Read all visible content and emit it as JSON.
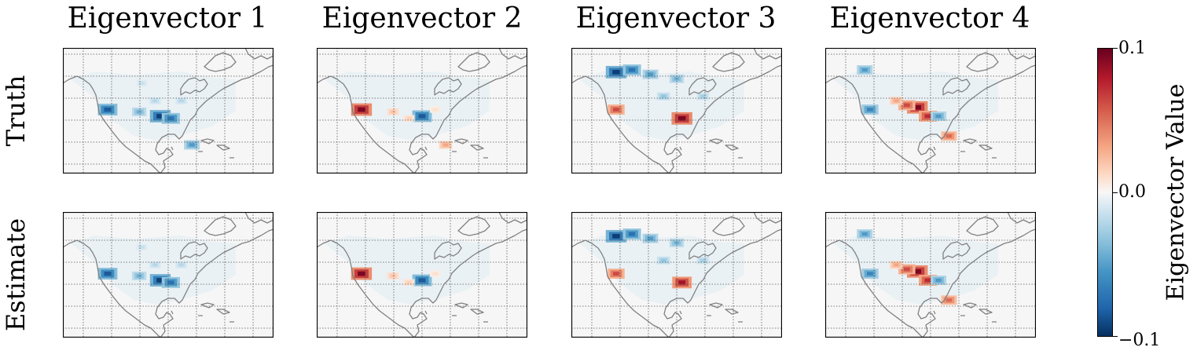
{
  "chart_data": {
    "type": "heatmap",
    "columns": [
      "Eigenvector 1",
      "Eigenvector 2",
      "Eigenvector 3",
      "Eigenvector 4"
    ],
    "rows": [
      "Truth",
      "Estimate"
    ],
    "colorbar": {
      "label": "Eigenvector Value",
      "ticks": [
        "0.1",
        "0.0",
        "−0.1"
      ],
      "range": [
        -0.1,
        0.1
      ],
      "colormap": "RdBu_r"
    },
    "grid": true,
    "map": "North America coastlines, lon/lat grid",
    "panels": [
      {
        "row": "Truth",
        "column": "Eigenvector 1",
        "features": [
          {
            "lon": -118,
            "lat": 34,
            "value": -0.08
          },
          {
            "lon": -98,
            "lat": 31,
            "value": -0.09
          },
          {
            "lon": -94,
            "lat": 30,
            "value": -0.07
          },
          {
            "lon": -106,
            "lat": 33,
            "value": -0.04
          },
          {
            "lon": -100,
            "lat": 38,
            "value": -0.02
          },
          {
            "lon": -105,
            "lat": 46,
            "value": -0.015
          },
          {
            "lon": -90,
            "lat": 38,
            "value": -0.02
          },
          {
            "lon": -86,
            "lat": 18,
            "value": -0.05
          }
        ]
      },
      {
        "row": "Truth",
        "column": "Eigenvector 2",
        "features": [
          {
            "lon": -118,
            "lat": 34,
            "value": 0.09
          },
          {
            "lon": -95,
            "lat": 31,
            "value": -0.08
          },
          {
            "lon": -106,
            "lat": 33,
            "value": 0.02
          },
          {
            "lon": -100,
            "lat": 30,
            "value": 0.015
          },
          {
            "lon": -90,
            "lat": 34,
            "value": 0.01
          },
          {
            "lon": -86,
            "lat": 18,
            "value": 0.03
          }
        ]
      },
      {
        "row": "Truth",
        "column": "Eigenvector 3",
        "features": [
          {
            "lon": -118,
            "lat": 51,
            "value": -0.09
          },
          {
            "lon": -112,
            "lat": 52,
            "value": -0.07
          },
          {
            "lon": -105,
            "lat": 50,
            "value": -0.05
          },
          {
            "lon": -95,
            "lat": 48,
            "value": -0.04
          },
          {
            "lon": -100,
            "lat": 40,
            "value": -0.03
          },
          {
            "lon": -85,
            "lat": 40,
            "value": -0.025
          },
          {
            "lon": -118,
            "lat": 34,
            "value": 0.06
          },
          {
            "lon": -93,
            "lat": 30,
            "value": 0.09
          }
        ]
      },
      {
        "row": "Truth",
        "column": "Eigenvector 4",
        "features": [
          {
            "lon": -100,
            "lat": 35,
            "value": 0.09
          },
          {
            "lon": -104,
            "lat": 36,
            "value": 0.06
          },
          {
            "lon": -96,
            "lat": 31,
            "value": 0.07
          },
          {
            "lon": -108,
            "lat": 38,
            "value": 0.03
          },
          {
            "lon": -118,
            "lat": 34,
            "value": -0.06
          },
          {
            "lon": -92,
            "lat": 31,
            "value": -0.05
          },
          {
            "lon": -120,
            "lat": 52,
            "value": -0.05
          },
          {
            "lon": -88,
            "lat": 22,
            "value": 0.05
          }
        ]
      },
      {
        "row": "Estimate",
        "column": "Eigenvector 1",
        "features": [
          {
            "lon": -118,
            "lat": 34,
            "value": -0.08
          },
          {
            "lon": -98,
            "lat": 31,
            "value": -0.09
          },
          {
            "lon": -94,
            "lat": 30,
            "value": -0.07
          },
          {
            "lon": -106,
            "lat": 33,
            "value": -0.04
          },
          {
            "lon": -100,
            "lat": 38,
            "value": -0.02
          },
          {
            "lon": -105,
            "lat": 46,
            "value": -0.015
          },
          {
            "lon": -90,
            "lat": 38,
            "value": -0.02
          }
        ]
      },
      {
        "row": "Estimate",
        "column": "Eigenvector 2",
        "features": [
          {
            "lon": -118,
            "lat": 34,
            "value": 0.09
          },
          {
            "lon": -95,
            "lat": 31,
            "value": -0.08
          },
          {
            "lon": -106,
            "lat": 33,
            "value": 0.02
          },
          {
            "lon": -100,
            "lat": 30,
            "value": 0.015
          },
          {
            "lon": -90,
            "lat": 34,
            "value": 0.01
          }
        ]
      },
      {
        "row": "Estimate",
        "column": "Eigenvector 3",
        "features": [
          {
            "lon": -118,
            "lat": 51,
            "value": -0.09
          },
          {
            "lon": -112,
            "lat": 52,
            "value": -0.07
          },
          {
            "lon": -105,
            "lat": 50,
            "value": -0.05
          },
          {
            "lon": -95,
            "lat": 48,
            "value": -0.04
          },
          {
            "lon": -100,
            "lat": 40,
            "value": -0.03
          },
          {
            "lon": -85,
            "lat": 40,
            "value": -0.025
          },
          {
            "lon": -118,
            "lat": 34,
            "value": 0.06
          },
          {
            "lon": -93,
            "lat": 30,
            "value": 0.08
          }
        ]
      },
      {
        "row": "Estimate",
        "column": "Eigenvector 4",
        "features": [
          {
            "lon": -100,
            "lat": 35,
            "value": 0.09
          },
          {
            "lon": -104,
            "lat": 36,
            "value": 0.06
          },
          {
            "lon": -96,
            "lat": 31,
            "value": 0.07
          },
          {
            "lon": -108,
            "lat": 38,
            "value": 0.03
          },
          {
            "lon": -118,
            "lat": 34,
            "value": -0.06
          },
          {
            "lon": -92,
            "lat": 31,
            "value": -0.05
          },
          {
            "lon": -120,
            "lat": 52,
            "value": -0.05
          },
          {
            "lon": -88,
            "lat": 22,
            "value": 0.05
          }
        ]
      }
    ]
  }
}
